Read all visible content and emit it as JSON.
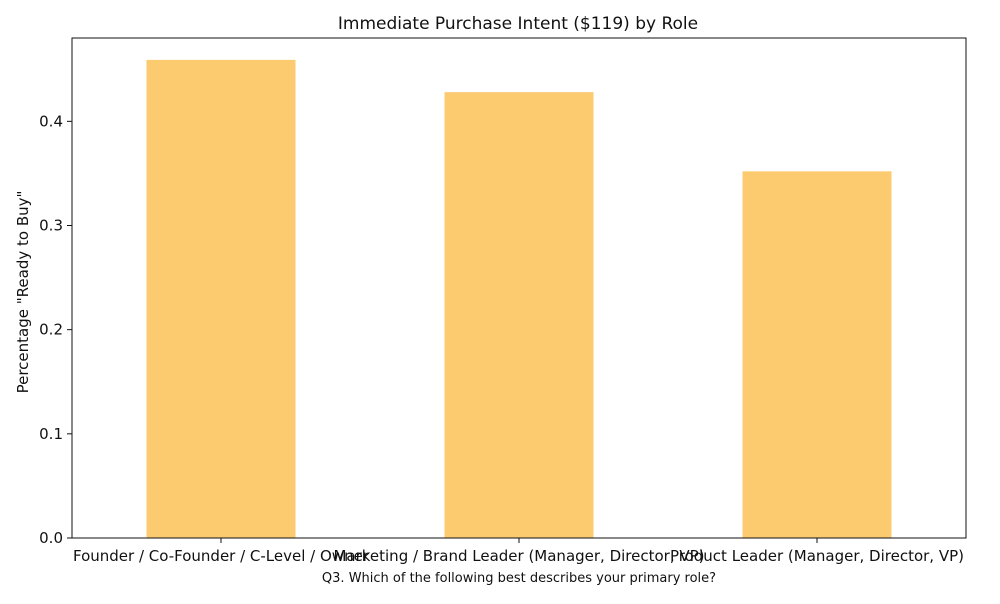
{
  "chart_data": {
    "type": "bar",
    "title": "Immediate Purchase Intent ($119) by Role",
    "xlabel": "Q3. Which of the following best describes your primary role?",
    "ylabel": "Percentage \"Ready to Buy\"",
    "categories": [
      "Founder / Co-Founder / C-Level / Owner",
      "Marketing / Brand Leader (Manager, Director, VP)",
      "Product Leader (Manager, Director, VP)"
    ],
    "values": [
      0.459,
      0.428,
      0.352
    ],
    "ylim": [
      0,
      0.48
    ],
    "yticks": [
      "0.0",
      "0.1",
      "0.2",
      "0.3",
      "0.4"
    ],
    "grid": false,
    "bar_color": "#FCCA6F"
  }
}
